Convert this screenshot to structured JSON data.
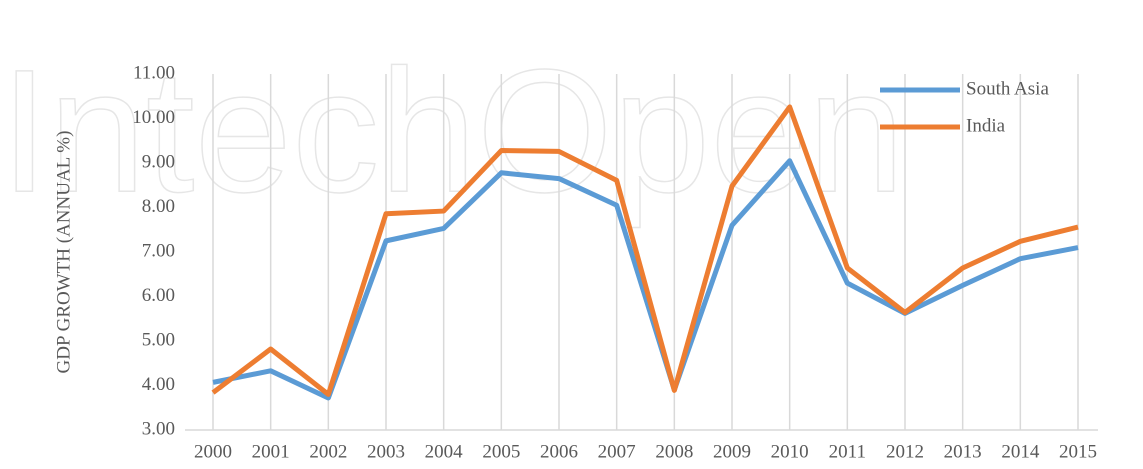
{
  "watermark": "IntechOpen",
  "chart_data": {
    "type": "line",
    "y_label": "GDP GROWTH (ANNUAL %)",
    "categories": [
      "2000",
      "2001",
      "2002",
      "2003",
      "2004",
      "2005",
      "2006",
      "2007",
      "2008",
      "2009",
      "2010",
      "2011",
      "2012",
      "2013",
      "2014",
      "2015"
    ],
    "series": [
      {
        "name": "South Asia",
        "color": "#5b9bd5",
        "values": [
          4.07,
          4.33,
          3.72,
          7.25,
          7.53,
          8.78,
          8.65,
          8.05,
          3.9,
          7.6,
          9.05,
          6.3,
          5.62,
          6.25,
          6.85,
          7.1
        ]
      },
      {
        "name": "India",
        "color": "#ed7d31",
        "values": [
          3.84,
          4.82,
          3.8,
          7.86,
          7.92,
          9.28,
          9.26,
          8.61,
          3.89,
          8.48,
          10.26,
          6.64,
          5.64,
          6.64,
          7.24,
          7.56
        ]
      }
    ],
    "ylim": [
      3,
      11
    ],
    "yticks": [
      {
        "value": 3,
        "label": "3.00"
      },
      {
        "value": 4,
        "label": "4.00"
      },
      {
        "value": 5,
        "label": "5.00"
      },
      {
        "value": 6,
        "label": "6.00"
      },
      {
        "value": 7,
        "label": "7.00"
      },
      {
        "value": 8,
        "label": "8.00"
      },
      {
        "value": 9,
        "label": "9.00"
      },
      {
        "value": 10,
        "label": "10.00"
      },
      {
        "value": 11,
        "label": "11.00"
      }
    ],
    "grid": "x",
    "legend": "top-right"
  }
}
